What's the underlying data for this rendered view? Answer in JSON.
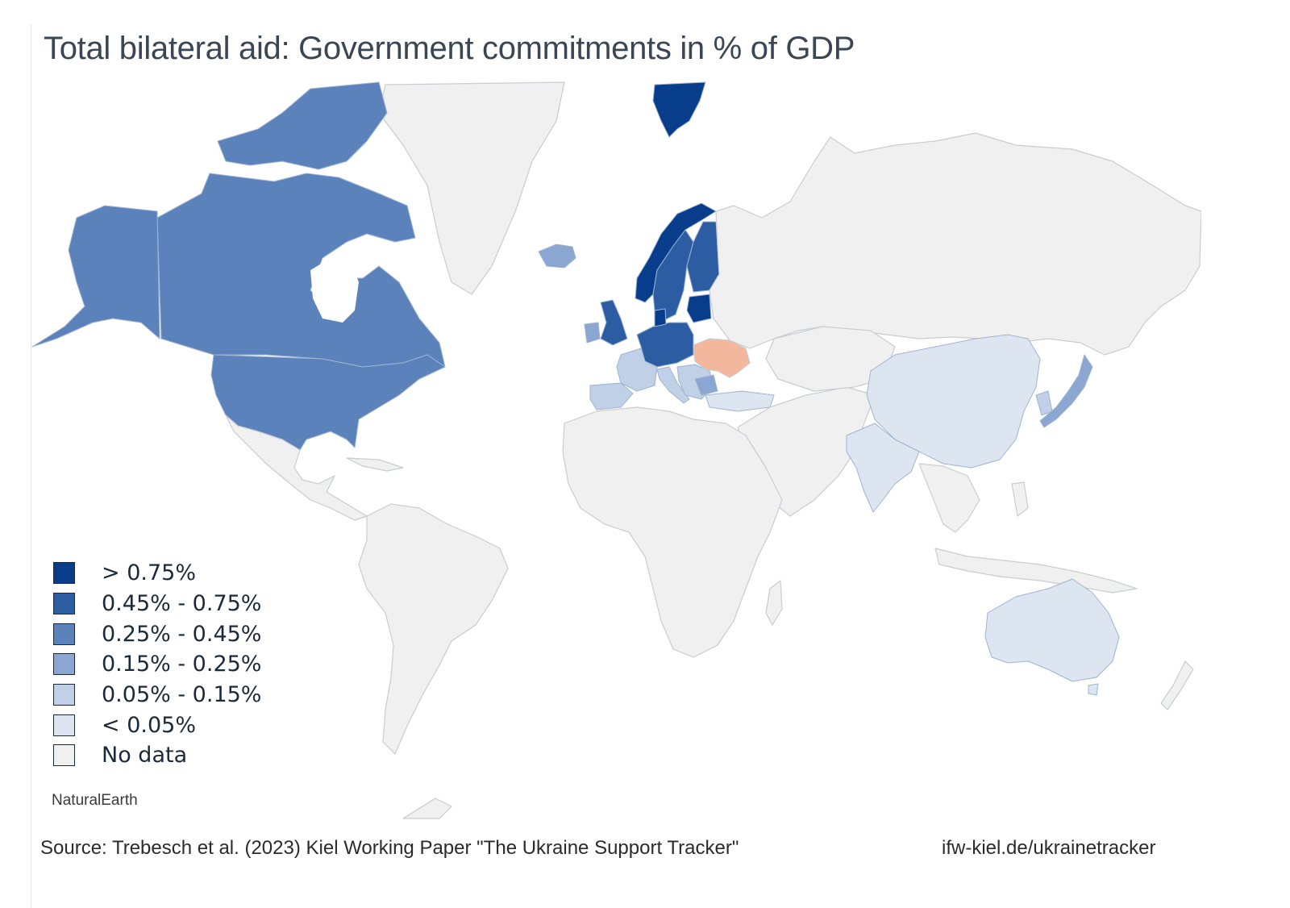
{
  "title": "Total bilateral aid: Government commitments in % of GDP",
  "colors": {
    "gt_075": "#083d8c",
    "c045_075": "#2c5da3",
    "c025_045": "#5c82bb",
    "c015_025": "#8ba6d1",
    "c005_015": "#c0d0e6",
    "lt_005": "#dde5f0",
    "no_data": "#f0f0f0",
    "ukraine": "#f2b79c",
    "border": "#c9ccd0"
  },
  "legend": [
    {
      "label": "> 0.75%",
      "color": "#083d8c"
    },
    {
      "label": "0.45% - 0.75%",
      "color": "#2c5da3"
    },
    {
      "label": "0.25% - 0.45%",
      "color": "#5c82bb"
    },
    {
      "label": "0.15% - 0.25%",
      "color": "#8ba6d1"
    },
    {
      "label": "0.05% - 0.15%",
      "color": "#c0d0e6"
    },
    {
      "label": "< 0.05%",
      "color": "#dde5f0"
    },
    {
      "label": "No data",
      "color": "#f0f0f0"
    }
  ],
  "attribution": "NaturalEarth",
  "source": "Source: Trebesch et al. (2023) Kiel Working Paper \"The Ukraine Support Tracker\"",
  "website": "ifw-kiel.de/ukrainetracker"
}
